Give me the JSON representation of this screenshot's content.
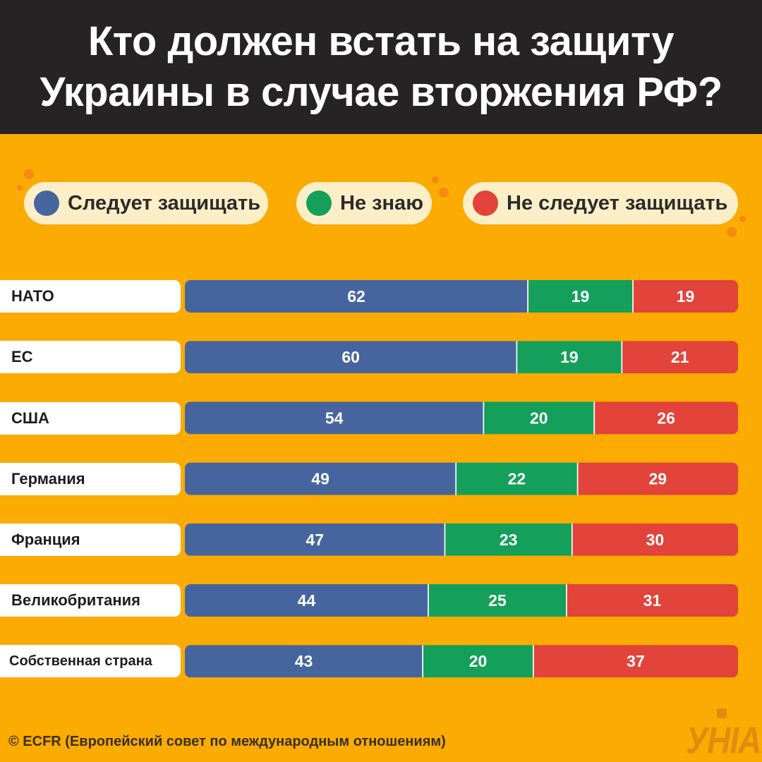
{
  "title_lines": [
    "Кто должен встать на защиту",
    "Украины в случае вторжения РФ?"
  ],
  "legend": [
    {
      "label": "Следует защищать",
      "color": "#46659E"
    },
    {
      "label": "Не знаю",
      "color": "#14A05A"
    },
    {
      "label": "Не следует защищать",
      "color": "#E2433A"
    }
  ],
  "footer": "© ECFR (Европейский совет по международным отношениям)",
  "logo_text": "УНІАН",
  "colors": {
    "background": "#FBAB01",
    "header": "#252323",
    "label_bg": "#FFFFFF"
  },
  "chart_data": {
    "type": "bar",
    "orientation": "horizontal",
    "stacked": true,
    "title": "Кто должен встать на защиту Украины в случае вторжения РФ?",
    "categories": [
      "НАТО",
      "ЕС",
      "США",
      "Германия",
      "Франция",
      "Великобритания",
      "Собственная страна"
    ],
    "series": [
      {
        "name": "Следует защищать",
        "color": "#46659E",
        "values": [
          62,
          60,
          54,
          49,
          47,
          44,
          43
        ]
      },
      {
        "name": "Не знаю",
        "color": "#14A05A",
        "values": [
          19,
          19,
          20,
          22,
          23,
          25,
          20
        ]
      },
      {
        "name": "Не следует защищать",
        "color": "#E2433A",
        "values": [
          19,
          21,
          26,
          29,
          30,
          31,
          37
        ]
      }
    ],
    "xlim": [
      0,
      100
    ],
    "data_labels": true,
    "legend": "top",
    "grid": false
  }
}
